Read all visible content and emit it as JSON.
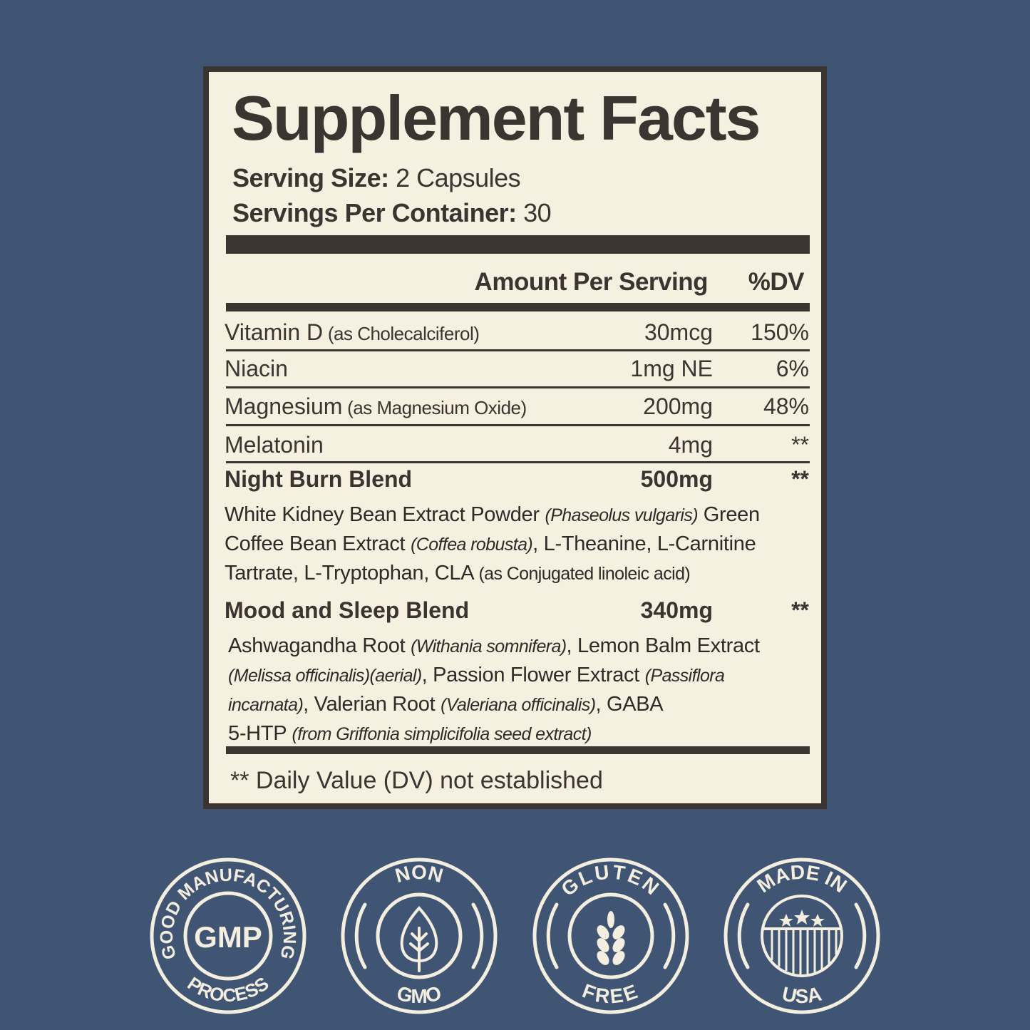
{
  "colors": {
    "background": "#3f5573",
    "label_bg": "#f6f0e0",
    "ink": "#3b3431",
    "badge": "#f3eedf"
  },
  "label": {
    "title": "Supplement Facts",
    "serving_size_label": "Serving Size:",
    "serving_size_value": " 2 Capsules",
    "servings_per_container_label": "Servings Per Container:",
    "servings_per_container_value": " 30",
    "header_amount": "Amount Per Serving",
    "header_dv": "%DV",
    "rows": [
      {
        "name": "Vitamin D",
        "note": " (as Cholecalciferol)",
        "amount": "30mcg",
        "dv": "150%"
      },
      {
        "name": "Niacin",
        "note": "",
        "amount": "1mg NE",
        "dv": "6%"
      },
      {
        "name": "Magnesium",
        "note": " (as Magnesium Oxide)",
        "amount": "200mg",
        "dv": "48%"
      },
      {
        "name": "Melatonin",
        "note": "",
        "amount": "4mg",
        "dv": "**"
      }
    ],
    "blends": [
      {
        "name": "Night Burn Blend",
        "amount": "500mg",
        "dv": "**",
        "ingredients": [
          {
            "text": "White Kidney Bean Extract Powder "
          },
          {
            "text": "(Phaseolus vulgaris)",
            "italic": true
          },
          {
            "text": " Green Coffee Bean Extract "
          },
          {
            "text": "(Coffea robusta)",
            "italic": true
          },
          {
            "text": ", L-Theanine, L-Carnitine Tartrate, L-Tryptophan, CLA "
          },
          {
            "text": "(as Conjugated linoleic acid)",
            "small": true
          }
        ]
      },
      {
        "name": "Mood and Sleep Blend",
        "amount": "340mg",
        "dv": "**",
        "ingredients": [
          {
            "text": "Ashwagandha Root "
          },
          {
            "text": "(Withania somnifera)",
            "italic": true
          },
          {
            "text": ", Lemon Balm Extract "
          },
          {
            "text": "(Melissa officinalis)(aerial)",
            "italic": true
          },
          {
            "text": ",  Passion Flower Extract "
          },
          {
            "text": "(Passiflora incarnata)",
            "italic": true
          },
          {
            "text": ", Valerian Root "
          },
          {
            "text": "(Valeriana officinalis)",
            "italic": true
          },
          {
            "text": ", GABA"
          },
          {
            "text": "5-HTP "
          },
          {
            "text": "(from Griffonia simplicifolia seed extract)",
            "italic": true
          }
        ]
      }
    ],
    "footnote": "** Daily Value (DV) not established"
  },
  "badges": [
    {
      "top": "GOOD MANUFACTURING",
      "center": "GMP",
      "bottom": "PROCESS",
      "icon": "gmp-text"
    },
    {
      "top": "NON",
      "bottom": "GMO",
      "icon": "leaf-icon"
    },
    {
      "top": "GLUTEN",
      "bottom": "FREE",
      "icon": "wheat-icon"
    },
    {
      "top": "MADE IN",
      "bottom": "USA",
      "icon": "usa-flag-icon"
    }
  ]
}
